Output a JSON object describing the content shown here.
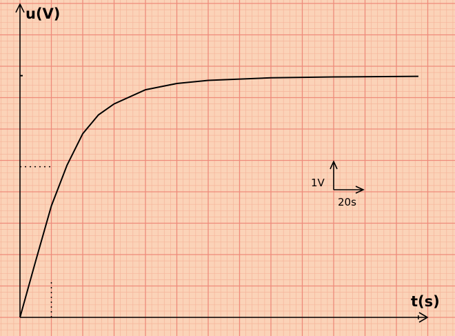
{
  "chart_data": {
    "type": "line",
    "y_axis_label": "u(V)",
    "x_axis_label": "t(s)",
    "scale_indicator": {
      "y_unit_label": "1V",
      "x_unit_label": "20s"
    },
    "x_unit_per_division": 20,
    "y_unit_per_division": 1,
    "xlim": [
      0,
      260
    ],
    "ylim": [
      0,
      8
    ],
    "series": [
      {
        "values": [
          {
            "x": 0,
            "y": 0
          },
          {
            "x": 10,
            "y": 1.8
          },
          {
            "x": 20,
            "y": 3.55
          },
          {
            "x": 30,
            "y": 4.85
          },
          {
            "x": 40,
            "y": 5.85
          },
          {
            "x": 50,
            "y": 6.45
          },
          {
            "x": 60,
            "y": 6.8
          },
          {
            "x": 80,
            "y": 7.25
          },
          {
            "x": 100,
            "y": 7.45
          },
          {
            "x": 120,
            "y": 7.55
          },
          {
            "x": 160,
            "y": 7.63
          },
          {
            "x": 200,
            "y": 7.66
          },
          {
            "x": 254,
            "y": 7.68
          }
        ]
      }
    ],
    "asymptote_tick": {
      "y": 7.7
    },
    "marked_point": {
      "x": 20,
      "y": 4.8
    },
    "colors": {
      "background": "#fbd3b8",
      "minor_grid": "#f5b49a",
      "major_grid": "#ee8a7a",
      "curve": "#000000"
    }
  }
}
